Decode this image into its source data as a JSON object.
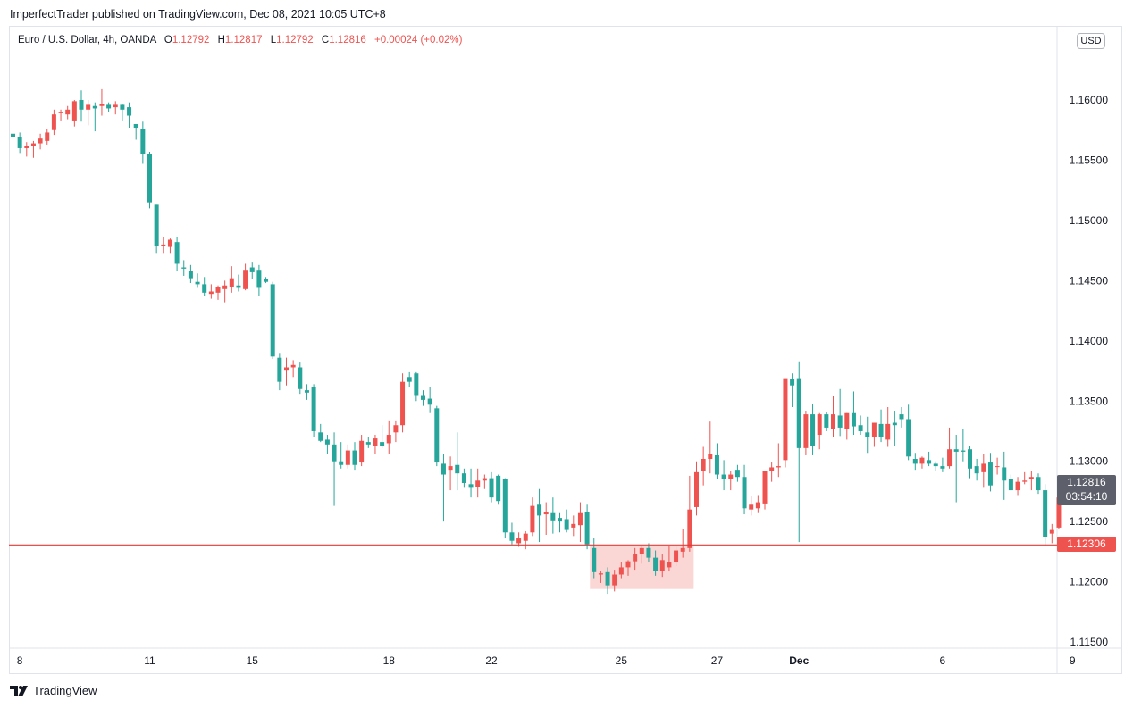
{
  "header": {
    "published_line": "ImperfectTrader published on TradingView.com, Dec 08, 2021 10:05 UTC+8"
  },
  "legend": {
    "symbol": "Euro / U.S. Dollar, 4h, OANDA",
    "open_label": "O",
    "open_value": "1.12792",
    "high_label": "H",
    "high_value": "1.12817",
    "low_label": "L",
    "low_value": "1.12792",
    "close_label": "C",
    "close_value": "1.12816",
    "change": "+0.00024 (+0.02%)"
  },
  "price_axis": {
    "currency_button": "USD",
    "ticks": [
      "1.16000",
      "1.15500",
      "1.15000",
      "1.14500",
      "1.14000",
      "1.13500",
      "1.13000",
      "1.12500",
      "1.12000",
      "1.11500"
    ]
  },
  "time_axis": {
    "ticks": [
      "8",
      "11",
      "15",
      "18",
      "22",
      "25",
      "27",
      "Dec",
      "6",
      "9"
    ]
  },
  "badges": {
    "last_price": "1.12816",
    "countdown": "03:54:10",
    "level_price": "1.12306"
  },
  "footer": {
    "brand": "TradingView"
  },
  "colors": {
    "up": "#ef5350",
    "down": "#26a69a",
    "level_line": "#e53935",
    "zone_fill": "#f8c9c7"
  },
  "chart_data": {
    "type": "candlestick",
    "symbol": "EURUSD",
    "timeframe": "4h",
    "ylim": [
      1.1145,
      1.1645
    ],
    "grid": false,
    "x_ticks": [
      {
        "label": "8",
        "index": 1
      },
      {
        "label": "11",
        "index": 20
      },
      {
        "label": "15",
        "index": 35
      },
      {
        "label": "18",
        "index": 55
      },
      {
        "label": "22",
        "index": 70
      },
      {
        "label": "25",
        "index": 89
      },
      {
        "label": "27",
        "index": 103
      },
      {
        "label": "Dec",
        "index": 115
      },
      {
        "label": "6",
        "index": 136
      },
      {
        "label": "9",
        "index": 155
      }
    ],
    "y_ticks": [
      1.16,
      1.155,
      1.15,
      1.145,
      1.14,
      1.135,
      1.13,
      1.125,
      1.12,
      1.115
    ],
    "horizontal_line": 1.12306,
    "highlight_zone": {
      "from_index": 85,
      "to_index": 99,
      "price_low": 1.1194,
      "price_high": 1.123
    },
    "candles": [
      [
        1.1572,
        1.1576,
        1.1549,
        1.1569
      ],
      [
        1.1569,
        1.1573,
        1.1556,
        1.156
      ],
      [
        1.156,
        1.1565,
        1.1553,
        1.1562
      ],
      [
        1.1562,
        1.1566,
        1.1552,
        1.1564
      ],
      [
        1.1564,
        1.1572,
        1.1559,
        1.1568
      ],
      [
        1.1566,
        1.1576,
        1.1563,
        1.1573
      ],
      [
        1.1575,
        1.1592,
        1.1571,
        1.1588
      ],
      [
        1.1589,
        1.1592,
        1.1583,
        1.159
      ],
      [
        1.1588,
        1.1595,
        1.1584,
        1.1592
      ],
      [
        1.1583,
        1.16,
        1.1578,
        1.1599
      ],
      [
        1.16,
        1.1608,
        1.1582,
        1.1592
      ],
      [
        1.1592,
        1.16,
        1.1579,
        1.1596
      ],
      [
        1.1595,
        1.1598,
        1.1574,
        1.1593
      ],
      [
        1.1595,
        1.1609,
        1.1587,
        1.1597
      ],
      [
        1.1596,
        1.1598,
        1.159,
        1.1593
      ],
      [
        1.1594,
        1.1599,
        1.1588,
        1.1596
      ],
      [
        1.1596,
        1.1597,
        1.1583,
        1.1592
      ],
      [
        1.1594,
        1.1598,
        1.1577,
        1.1587
      ],
      [
        1.158,
        1.158,
        1.1567,
        1.1577
      ],
      [
        1.1576,
        1.1582,
        1.1547,
        1.1555
      ],
      [
        1.1555,
        1.1557,
        1.151,
        1.1515
      ],
      [
        1.1513,
        1.1513,
        1.1473,
        1.1479
      ],
      [
        1.1479,
        1.1486,
        1.1473,
        1.148
      ],
      [
        1.1478,
        1.1485,
        1.1473,
        1.1484
      ],
      [
        1.1482,
        1.1486,
        1.1458,
        1.1464
      ],
      [
        1.1461,
        1.1467,
        1.1454,
        1.146
      ],
      [
        1.1458,
        1.1463,
        1.1448,
        1.1452
      ],
      [
        1.1449,
        1.1456,
        1.1444,
        1.1447
      ],
      [
        1.1447,
        1.1453,
        1.1437,
        1.144
      ],
      [
        1.1439,
        1.1447,
        1.1435,
        1.1441
      ],
      [
        1.144,
        1.1446,
        1.1434,
        1.1445
      ],
      [
        1.1443,
        1.145,
        1.1432,
        1.1446
      ],
      [
        1.1445,
        1.1462,
        1.144,
        1.1452
      ],
      [
        1.1446,
        1.1455,
        1.1441,
        1.1444
      ],
      [
        1.1443,
        1.1464,
        1.1442,
        1.1459
      ],
      [
        1.1461,
        1.1465,
        1.1451,
        1.1457
      ],
      [
        1.1459,
        1.1463,
        1.1437,
        1.1444
      ],
      [
        1.1451,
        1.1453,
        1.1448,
        1.1449
      ],
      [
        1.1447,
        1.1449,
        1.1385,
        1.1387
      ],
      [
        1.1386,
        1.139,
        1.1359,
        1.1366
      ],
      [
        1.1376,
        1.1386,
        1.1363,
        1.1378
      ],
      [
        1.1378,
        1.1384,
        1.137,
        1.138
      ],
      [
        1.1378,
        1.1382,
        1.1356,
        1.136
      ],
      [
        1.1359,
        1.1364,
        1.1351,
        1.1357
      ],
      [
        1.1362,
        1.1364,
        1.132,
        1.1325
      ],
      [
        1.1324,
        1.1331,
        1.1316,
        1.1317
      ],
      [
        1.1318,
        1.1322,
        1.1306,
        1.1314
      ],
      [
        1.1314,
        1.1324,
        1.1263,
        1.13
      ],
      [
        1.13,
        1.1316,
        1.1294,
        1.1297
      ],
      [
        1.1297,
        1.1314,
        1.1294,
        1.1309
      ],
      [
        1.1309,
        1.1316,
        1.1293,
        1.1297
      ],
      [
        1.1299,
        1.1322,
        1.1296,
        1.1317
      ],
      [
        1.1316,
        1.132,
        1.1311,
        1.1314
      ],
      [
        1.1313,
        1.1322,
        1.1306,
        1.1319
      ],
      [
        1.1316,
        1.133,
        1.1311,
        1.1313
      ],
      [
        1.1315,
        1.1334,
        1.1306,
        1.1322
      ],
      [
        1.1324,
        1.1334,
        1.1316,
        1.133
      ],
      [
        1.133,
        1.1373,
        1.1324,
        1.1366
      ],
      [
        1.137,
        1.1374,
        1.1362,
        1.1366
      ],
      [
        1.1373,
        1.1374,
        1.135,
        1.1355
      ],
      [
        1.1355,
        1.1359,
        1.1346,
        1.1351
      ],
      [
        1.1352,
        1.1362,
        1.134,
        1.1347
      ],
      [
        1.1344,
        1.1346,
        1.1296,
        1.1299
      ],
      [
        1.1298,
        1.1306,
        1.125,
        1.1289
      ],
      [
        1.1293,
        1.1304,
        1.1276,
        1.1296
      ],
      [
        1.1297,
        1.1324,
        1.1276,
        1.129
      ],
      [
        1.129,
        1.1294,
        1.1278,
        1.1282
      ],
      [
        1.1281,
        1.1294,
        1.127,
        1.1278
      ],
      [
        1.1279,
        1.1294,
        1.127,
        1.1284
      ],
      [
        1.1284,
        1.1289,
        1.1277,
        1.1286
      ],
      [
        1.1286,
        1.1291,
        1.1266,
        1.127
      ],
      [
        1.1288,
        1.1289,
        1.1264,
        1.1267
      ],
      [
        1.1285,
        1.1286,
        1.1236,
        1.1241
      ],
      [
        1.1241,
        1.1249,
        1.1231,
        1.1234
      ],
      [
        1.1232,
        1.1241,
        1.1229,
        1.1236
      ],
      [
        1.1234,
        1.1242,
        1.1227,
        1.124
      ],
      [
        1.1241,
        1.127,
        1.1238,
        1.1263
      ],
      [
        1.1264,
        1.1277,
        1.1233,
        1.1255
      ],
      [
        1.1256,
        1.1266,
        1.1239,
        1.1258
      ],
      [
        1.1257,
        1.127,
        1.124,
        1.1251
      ],
      [
        1.1253,
        1.1257,
        1.1241,
        1.125
      ],
      [
        1.1252,
        1.126,
        1.1241,
        1.1243
      ],
      [
        1.1245,
        1.1255,
        1.1238,
        1.1248
      ],
      [
        1.1247,
        1.1266,
        1.1233,
        1.1257
      ],
      [
        1.1258,
        1.1264,
        1.1227,
        1.1231
      ],
      [
        1.1228,
        1.1236,
        1.1203,
        1.1208
      ],
      [
        1.1206,
        1.1209,
        1.1199,
        1.1207
      ],
      [
        1.1208,
        1.1212,
        1.119,
        1.1197
      ],
      [
        1.1197,
        1.121,
        1.1192,
        1.1206
      ],
      [
        1.1206,
        1.1216,
        1.1203,
        1.1212
      ],
      [
        1.1212,
        1.1218,
        1.1205,
        1.1217
      ],
      [
        1.1217,
        1.1228,
        1.121,
        1.1223
      ],
      [
        1.1223,
        1.123,
        1.1215,
        1.1228
      ],
      [
        1.1228,
        1.1232,
        1.1216,
        1.122
      ],
      [
        1.122,
        1.1226,
        1.1205,
        1.1209
      ],
      [
        1.1209,
        1.1223,
        1.1204,
        1.1218
      ],
      [
        1.1212,
        1.123,
        1.1209,
        1.1216
      ],
      [
        1.1216,
        1.123,
        1.1213,
        1.1226
      ],
      [
        1.1225,
        1.1244,
        1.122,
        1.1228
      ],
      [
        1.1228,
        1.1288,
        1.1225,
        1.126
      ],
      [
        1.1262,
        1.13,
        1.1255,
        1.1291
      ],
      [
        1.1292,
        1.1312,
        1.128,
        1.1302
      ],
      [
        1.1302,
        1.1333,
        1.129,
        1.1306
      ],
      [
        1.1305,
        1.1315,
        1.1285,
        1.1289
      ],
      [
        1.1289,
        1.1301,
        1.1276,
        1.1285
      ],
      [
        1.1285,
        1.1292,
        1.1276,
        1.1289
      ],
      [
        1.1293,
        1.1297,
        1.1283,
        1.1287
      ],
      [
        1.1287,
        1.1297,
        1.1256,
        1.1261
      ],
      [
        1.126,
        1.1271,
        1.1255,
        1.1264
      ],
      [
        1.1261,
        1.1272,
        1.1257,
        1.1266
      ],
      [
        1.1265,
        1.129,
        1.126,
        1.1292
      ],
      [
        1.1292,
        1.1299,
        1.1283,
        1.1295
      ],
      [
        1.1295,
        1.1315,
        1.1287,
        1.1296
      ],
      [
        1.1301,
        1.1367,
        1.1295,
        1.1369
      ],
      [
        1.1368,
        1.1373,
        1.1345,
        1.1363
      ],
      [
        1.1369,
        1.1383,
        1.1233,
        1.1311
      ],
      [
        1.1311,
        1.1342,
        1.1305,
        1.1339
      ],
      [
        1.1339,
        1.1348,
        1.1305,
        1.1313
      ],
      [
        1.1322,
        1.134,
        1.131,
        1.1339
      ],
      [
        1.1339,
        1.1341,
        1.1325,
        1.1328
      ],
      [
        1.1327,
        1.1354,
        1.132,
        1.1339
      ],
      [
        1.1338,
        1.136,
        1.1321,
        1.1328
      ],
      [
        1.1327,
        1.134,
        1.1318,
        1.134
      ],
      [
        1.134,
        1.1358,
        1.1322,
        1.1329
      ],
      [
        1.133,
        1.1338,
        1.1322,
        1.1325
      ],
      [
        1.1324,
        1.1337,
        1.1307,
        1.132
      ],
      [
        1.132,
        1.1332,
        1.1312,
        1.1332
      ],
      [
        1.1331,
        1.1343,
        1.1316,
        1.132
      ],
      [
        1.1318,
        1.1345,
        1.1312,
        1.1331
      ],
      [
        1.1332,
        1.1342,
        1.1313,
        1.133
      ],
      [
        1.1339,
        1.1345,
        1.1328,
        1.1335
      ],
      [
        1.1335,
        1.1347,
        1.1301,
        1.1304
      ],
      [
        1.1302,
        1.1307,
        1.1293,
        1.1298
      ],
      [
        1.1298,
        1.1304,
        1.1294,
        1.1303
      ],
      [
        1.1301,
        1.1308,
        1.1296,
        1.1298
      ],
      [
        1.1298,
        1.13,
        1.1292,
        1.1296
      ],
      [
        1.1296,
        1.1303,
        1.1291,
        1.1294
      ],
      [
        1.1296,
        1.1328,
        1.1294,
        1.131
      ],
      [
        1.131,
        1.1322,
        1.1266,
        1.1308
      ],
      [
        1.1309,
        1.1327,
        1.13,
        1.1308
      ],
      [
        1.131,
        1.1313,
        1.1286,
        1.1294
      ],
      [
        1.1296,
        1.1302,
        1.1284,
        1.129
      ],
      [
        1.1291,
        1.1306,
        1.1278,
        1.1298
      ],
      [
        1.1299,
        1.1307,
        1.1275,
        1.128
      ],
      [
        1.1296,
        1.1303,
        1.1289,
        1.1296
      ],
      [
        1.1295,
        1.1308,
        1.1268,
        1.1284
      ],
      [
        1.1285,
        1.1289,
        1.1276,
        1.1276
      ],
      [
        1.1276,
        1.1287,
        1.1272,
        1.1283
      ],
      [
        1.1283,
        1.1291,
        1.1281,
        1.1284
      ],
      [
        1.1285,
        1.1292,
        1.1276,
        1.1287
      ],
      [
        1.1287,
        1.129,
        1.1273,
        1.1276
      ],
      [
        1.1276,
        1.1281,
        1.123,
        1.1237
      ],
      [
        1.124,
        1.1248,
        1.1232,
        1.1243
      ],
      [
        1.1245,
        1.1273,
        1.1244,
        1.127
      ],
      [
        1.127,
        1.1284,
        1.1268,
        1.128
      ],
      [
        1.12792,
        1.12817,
        1.12792,
        1.12816
      ]
    ]
  }
}
